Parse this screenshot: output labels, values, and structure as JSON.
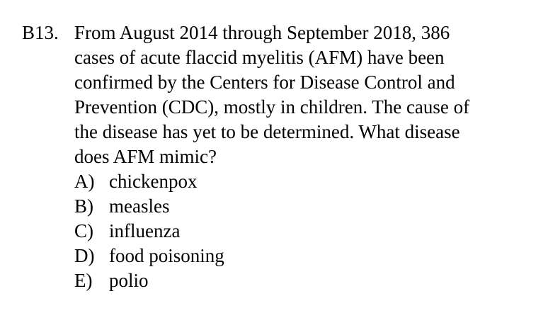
{
  "question": {
    "number": "B13.",
    "lines": [
      "From August 2014 through September 2018, 386",
      "cases of acute flaccid myelitis (AFM) have been",
      "confirmed by the Centers for Disease Control and",
      "Prevention (CDC), mostly in children.  The cause of",
      "the disease has yet to be determined.  What disease",
      "does AFM mimic?"
    ]
  },
  "choices": [
    {
      "letter": "A)",
      "text": "chickenpox"
    },
    {
      "letter": "B)",
      "text": "measles"
    },
    {
      "letter": "C)",
      "text": "influenza"
    },
    {
      "letter": "D)",
      "text": "food poisoning"
    },
    {
      "letter": "E)",
      "text": "polio"
    }
  ]
}
